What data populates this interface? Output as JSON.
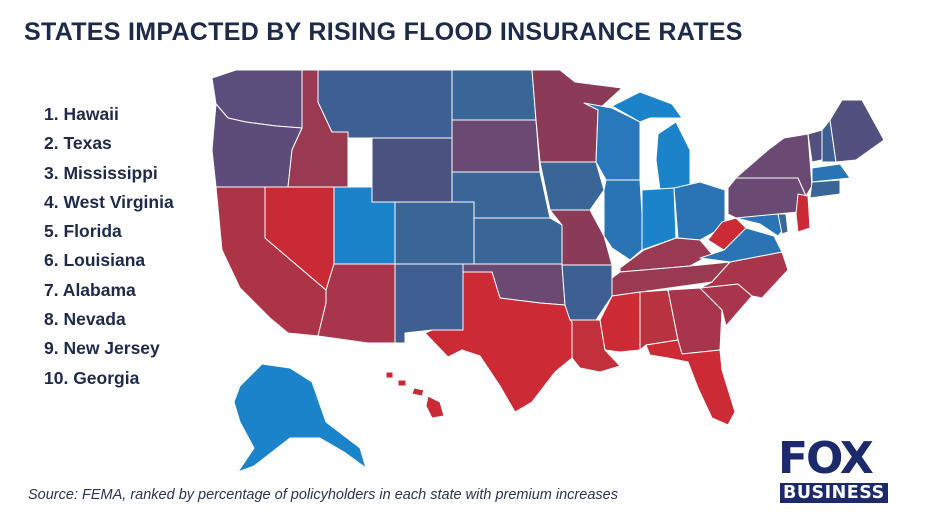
{
  "title": "STATES IMPACTED BY RISING FLOOD INSURANCE RATES",
  "ranking": [
    "1. Hawaii",
    "2. Texas",
    "3. Mississippi",
    "4. West Virginia",
    "5. Florida",
    "6. Louisiana",
    "7. Alabama",
    "8. Nevada",
    "9. New Jersey",
    "10. Georgia"
  ],
  "source": "Source: FEMA, ranked by percentage of policyholders in each state with premium increases",
  "logo": {
    "line1": "FOX",
    "line2": "BUSINESS"
  },
  "colors": {
    "highest": "#cc2a35",
    "high": "#a8354c",
    "mid_high": "#8b3b58",
    "mid": "#6a4a72",
    "mid_low": "#52507e",
    "low": "#3a6597",
    "lowest": "#1a83c9",
    "brand": "#1c2a6b"
  }
}
